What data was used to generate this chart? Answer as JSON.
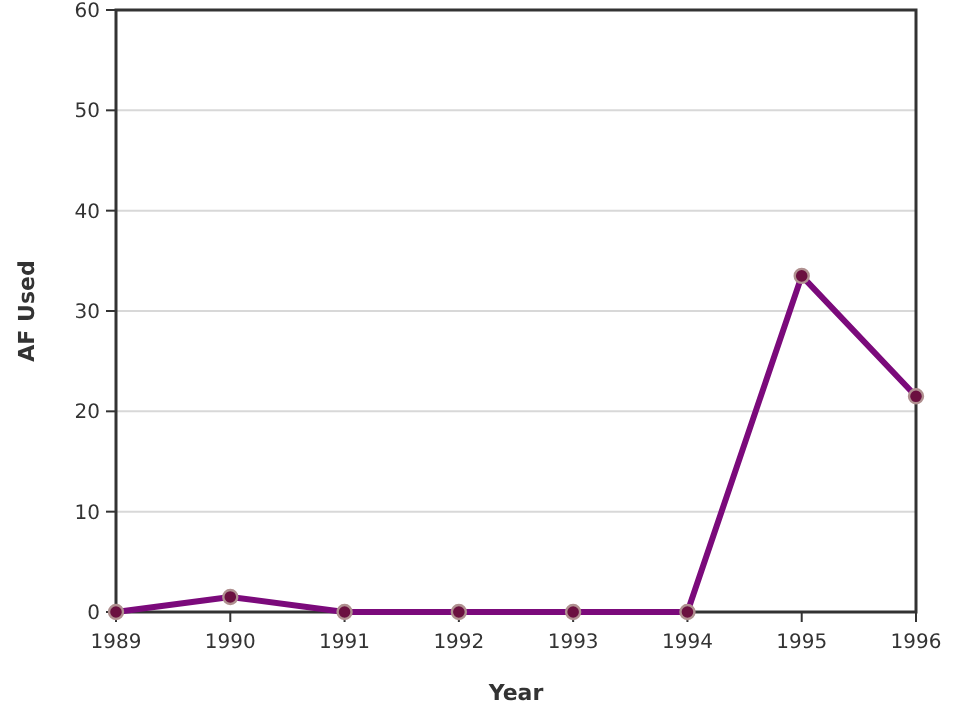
{
  "chart_data": {
    "type": "line",
    "xlabel": "Year",
    "ylabel": "AF Used",
    "x": [
      1989,
      1990,
      1991,
      1992,
      1993,
      1994,
      1995,
      1996
    ],
    "series": [
      {
        "color": "#7b0a7b",
        "values": [
          0,
          1.5,
          0,
          0,
          0,
          0,
          33.5,
          21.5
        ]
      }
    ],
    "xlim": [
      1989,
      1996
    ],
    "xticks": [
      1989,
      1990,
      1991,
      1992,
      1993,
      1994,
      1995,
      1996
    ],
    "ylim": [
      0,
      60
    ],
    "yticks": [
      0,
      10,
      20,
      30,
      40,
      50,
      60
    ],
    "grid": "y",
    "marker": "circle",
    "line_style": "solid"
  }
}
